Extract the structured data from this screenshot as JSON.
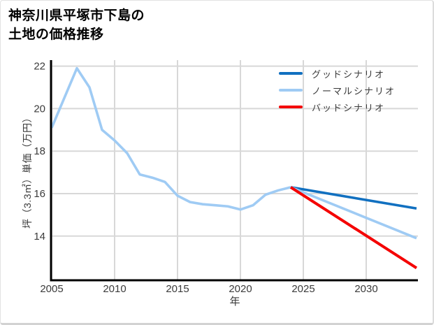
{
  "card": {
    "title_line1": "神奈川県平塚市下島の",
    "title_line2": "土地の価格推移"
  },
  "chart_data": {
    "type": "line",
    "title": "神奈川県平塚市下島の土地の価格推移",
    "xlabel": "年",
    "ylabel": "坪（3.3㎡）単価（万円）",
    "xlim": [
      2005,
      2034.2
    ],
    "ylim": [
      11.9,
      22.3
    ],
    "x_ticks": [
      2005,
      2010,
      2015,
      2020,
      2025,
      2030
    ],
    "y_ticks": [
      14,
      16,
      18,
      20,
      22
    ],
    "grid": true,
    "legend_position": "top-right-inside",
    "axis_color": "#000000",
    "grid_color": "#d8d8d8",
    "tick_label_color": "#3b3b3b",
    "series": [
      {
        "key": "history",
        "color": "#9fcbf4",
        "width": 3.6,
        "in_legend": false,
        "x": [
          2005,
          2006,
          2007,
          2008,
          2009,
          2010,
          2011,
          2012,
          2013,
          2014,
          2015,
          2016,
          2017,
          2018,
          2019,
          2020,
          2021,
          2022,
          2023,
          2024
        ],
        "values": [
          19.1,
          20.5,
          21.9,
          21.0,
          19.0,
          18.5,
          17.9,
          16.9,
          16.75,
          16.55,
          15.9,
          15.6,
          15.5,
          15.45,
          15.4,
          15.25,
          15.45,
          15.95,
          16.15,
          16.3
        ]
      },
      {
        "key": "good",
        "name": "グッドシナリオ",
        "color": "#1170c0",
        "width": 3.6,
        "in_legend": true,
        "x": [
          2024,
          2034
        ],
        "values": [
          16.3,
          15.3
        ]
      },
      {
        "key": "normal",
        "name": "ノーマルシナリオ",
        "color": "#9fcbf4",
        "width": 3.6,
        "in_legend": true,
        "x": [
          2024,
          2034
        ],
        "values": [
          16.3,
          13.9
        ]
      },
      {
        "key": "bad",
        "name": "バッドシナリオ",
        "color": "#f40000",
        "width": 4,
        "in_legend": true,
        "x": [
          2024,
          2034
        ],
        "values": [
          16.3,
          12.5
        ]
      }
    ]
  }
}
